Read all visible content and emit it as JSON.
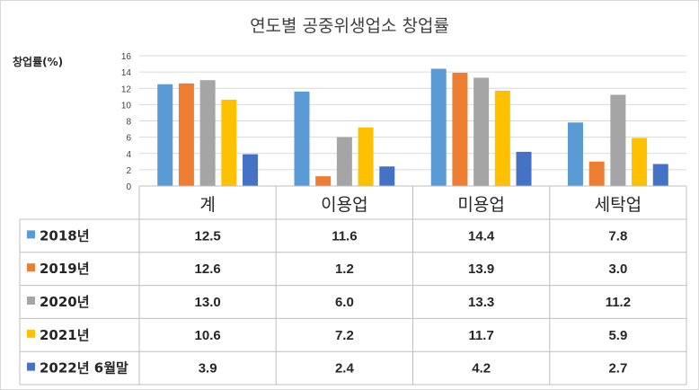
{
  "colors": {
    "series": [
      "#5b9bd5",
      "#ed7d31",
      "#a5a5a5",
      "#ffc000",
      "#4472c4"
    ],
    "grid": "#d9d9d9"
  },
  "chart_data": {
    "type": "bar",
    "title": "연도별 공중위생업소 창업률",
    "ylabel": "창업률(%)",
    "xlabel": "",
    "ylim": [
      0,
      16
    ],
    "yticks": [
      0,
      2,
      4,
      6,
      8,
      10,
      12,
      14,
      16
    ],
    "grid": true,
    "legend": "data-table",
    "categories": [
      "계",
      "이용업",
      "미용업",
      "세탁업"
    ],
    "series": [
      {
        "name": "2018년",
        "values": [
          12.5,
          11.6,
          14.4,
          7.8
        ],
        "labels": [
          "12.5",
          "11.6",
          "14.4",
          "7.8"
        ]
      },
      {
        "name": "2019년",
        "values": [
          12.6,
          1.2,
          13.9,
          3.0
        ],
        "labels": [
          "12.6",
          "1.2",
          "13.9",
          "3.0"
        ]
      },
      {
        "name": "2020년",
        "values": [
          13.0,
          6.0,
          13.3,
          11.2
        ],
        "labels": [
          "13.0",
          "6.0",
          "13.3",
          "11.2"
        ]
      },
      {
        "name": "2021년",
        "values": [
          10.6,
          7.2,
          11.7,
          5.9
        ],
        "labels": [
          "10.6",
          "7.2",
          "11.7",
          "5.9"
        ]
      },
      {
        "name": "2022년 6월말",
        "values": [
          3.9,
          2.4,
          4.2,
          2.7
        ],
        "labels": [
          "3.9",
          "2.4",
          "4.2",
          "2.7"
        ]
      }
    ]
  }
}
